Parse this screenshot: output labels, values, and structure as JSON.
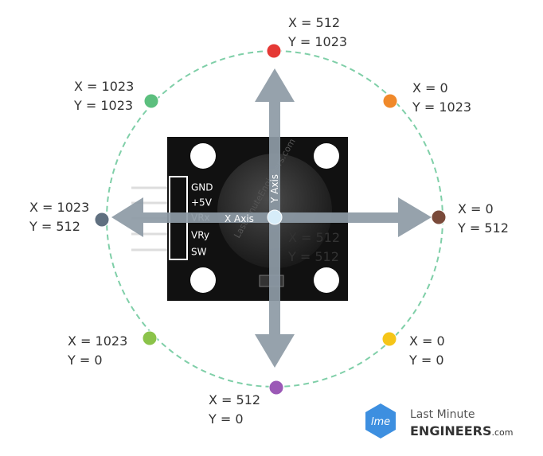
{
  "positions": [
    {
      "x": "X = 512",
      "y": "Y = 1023"
    },
    {
      "x": "X = 0",
      "y": "Y = 1023"
    },
    {
      "x": "X = 0",
      "y": "Y = 512"
    },
    {
      "x": "X = 0",
      "y": "Y = 0"
    },
    {
      "x": "X = 512",
      "y": "Y = 0"
    },
    {
      "x": "X = 1023",
      "y": "Y = 0"
    },
    {
      "x": "X = 1023",
      "y": "Y = 512"
    },
    {
      "x": "X = 1023",
      "y": "Y = 1023"
    },
    {
      "x": "X = 512",
      "y": "Y = 512"
    }
  ],
  "pins": [
    "GND",
    "+5V",
    "VRx",
    "VRy",
    "SW"
  ],
  "axes": {
    "x": "X Axis",
    "y": "Y Axis"
  },
  "watermark": "LastMinuteEngineers.com",
  "logo": {
    "mark": "lme",
    "line1": "Last Minute",
    "line2": "ENGINEERS",
    "suffix": ".com"
  }
}
